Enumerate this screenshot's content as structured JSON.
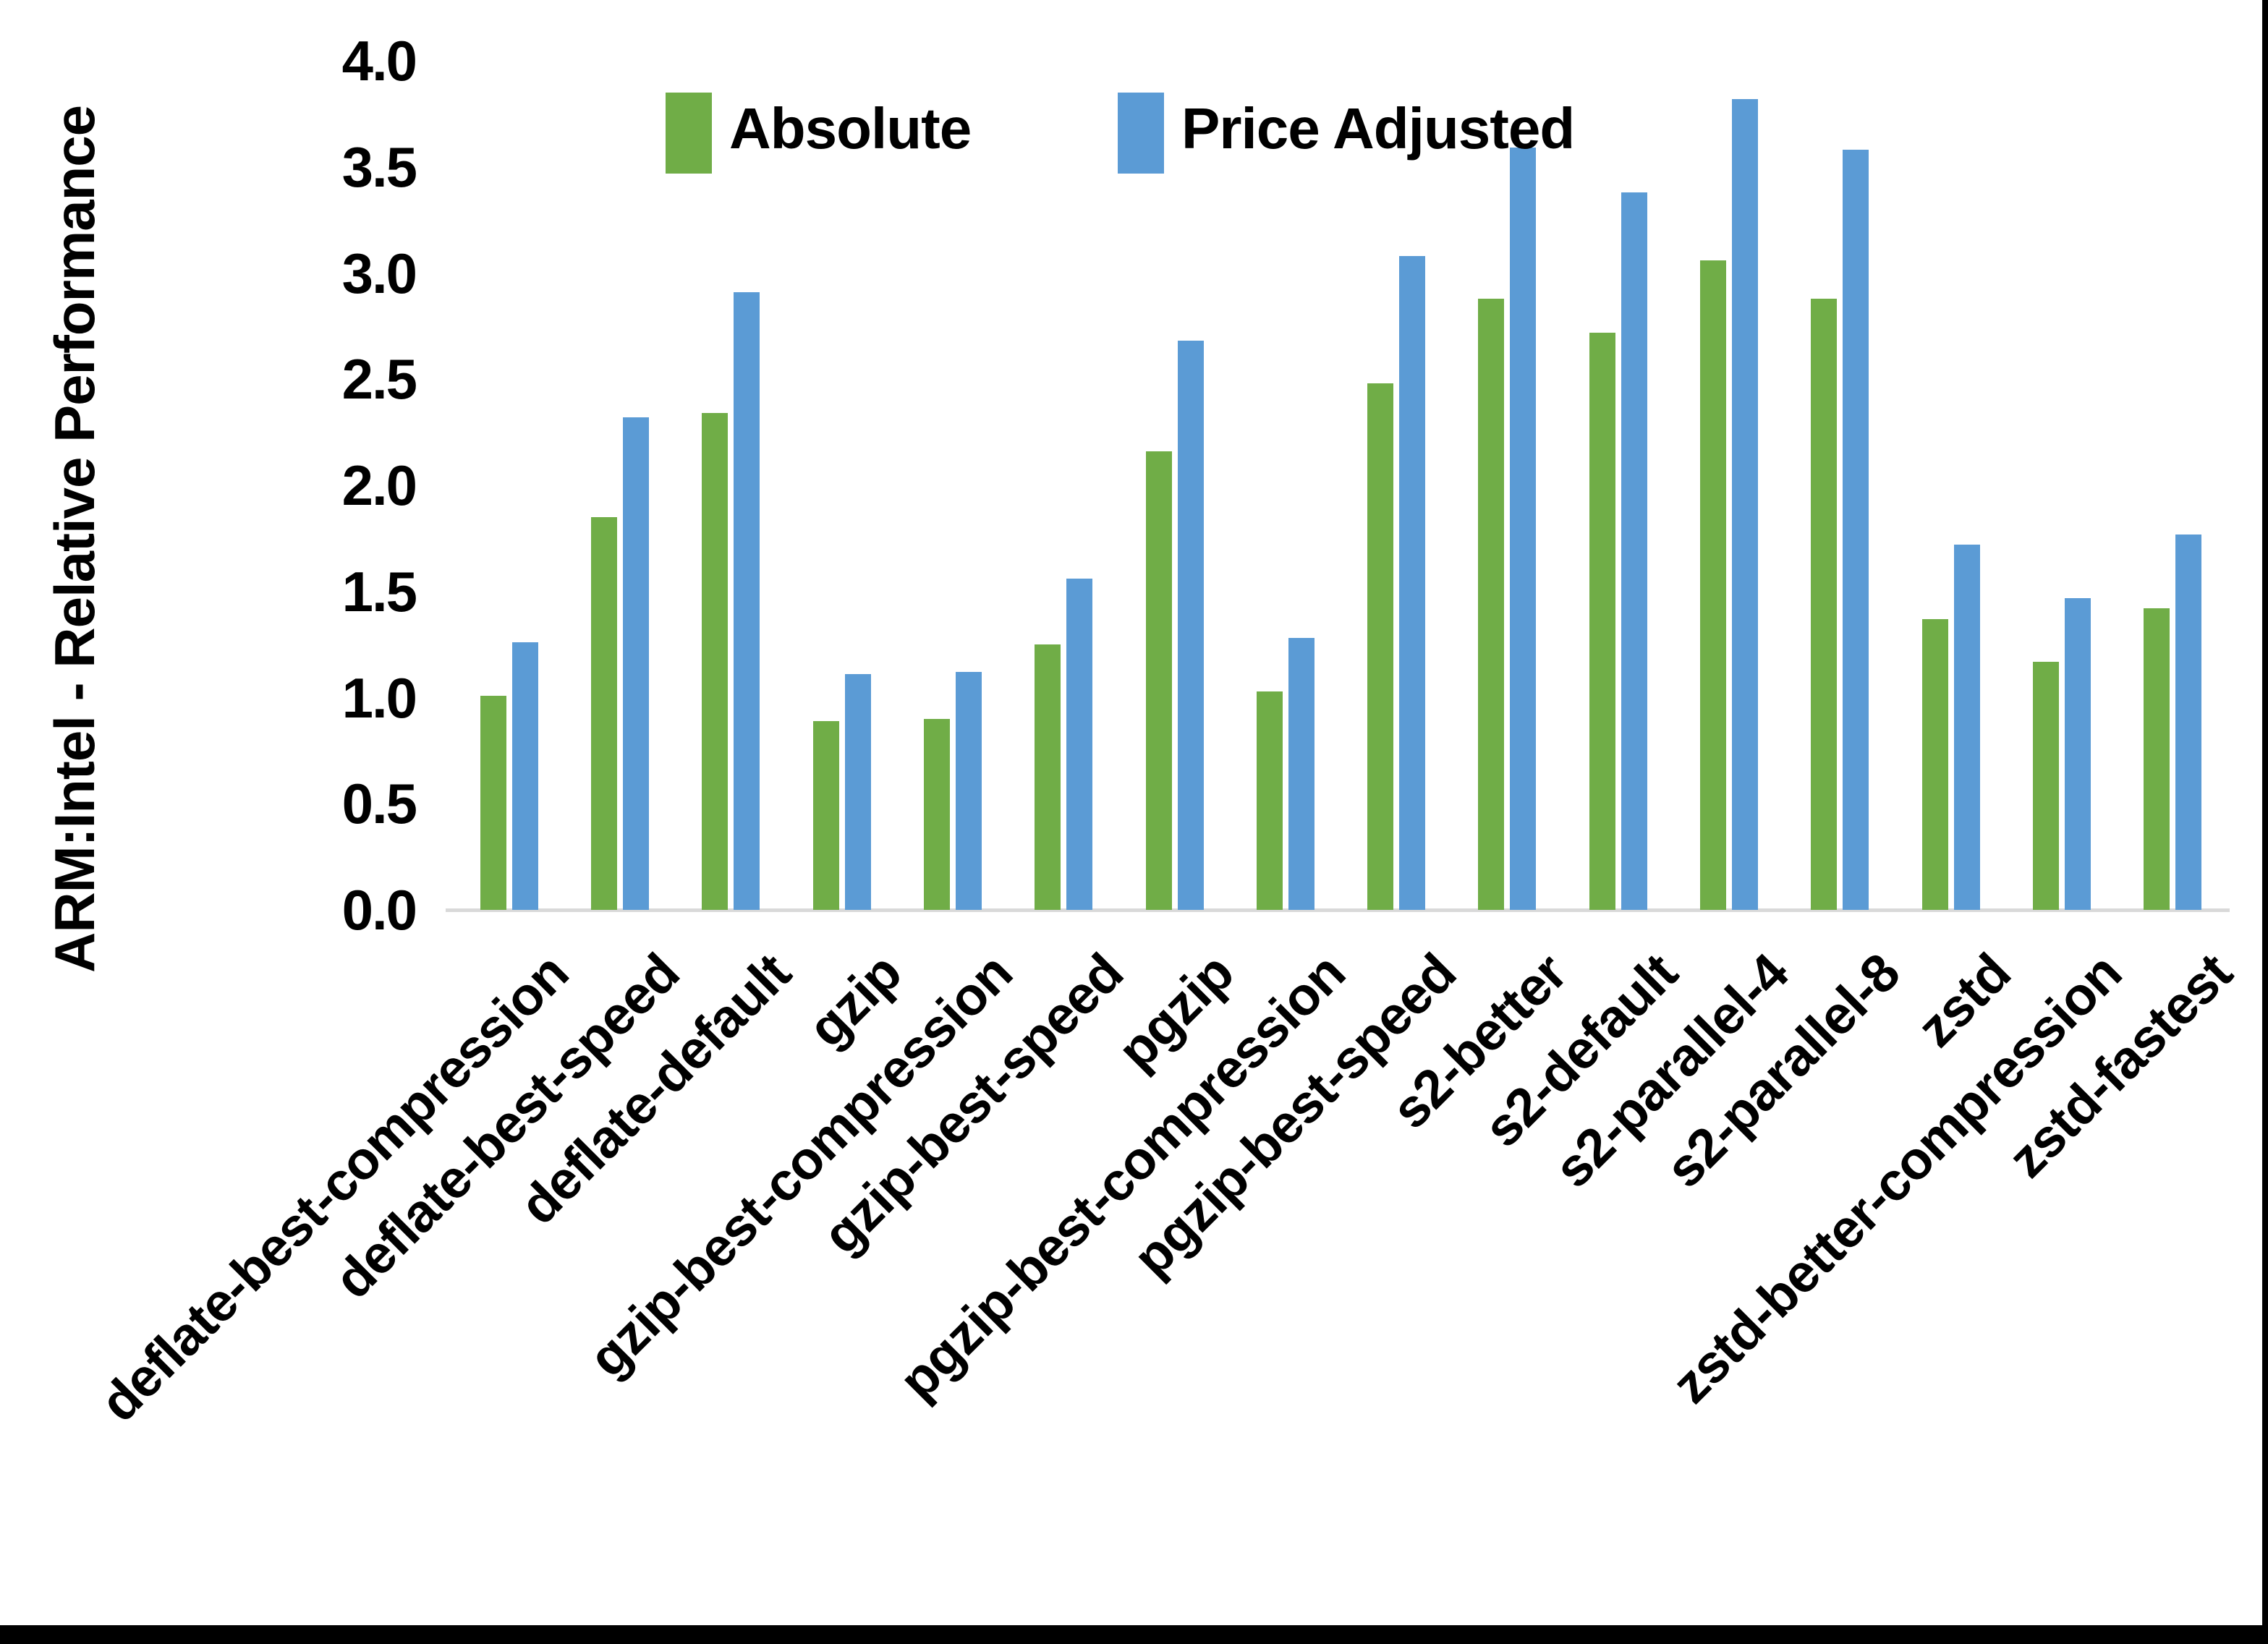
{
  "chart_data": {
    "type": "bar",
    "title": "",
    "xlabel": "",
    "ylabel": "ARM:Intel - Relative Performance",
    "ylim": [
      0.0,
      4.0
    ],
    "ytick_step": 0.5,
    "ytick_labels": [
      "0.0",
      "0.5",
      "1.0",
      "1.5",
      "2.0",
      "2.5",
      "3.0",
      "3.5",
      "4.0"
    ],
    "grid": false,
    "legend_position": "top-center",
    "categories": [
      "deflate-best-compression",
      "deflate-best-speed",
      "deflate-default",
      "gzip",
      "gzip-best-compression",
      "gzip-best-speed",
      "pgzip",
      "pgzip-best-compression",
      "pgzip-best-speed",
      "s2-better",
      "s2-default",
      "s2-parallel-4",
      "s2-parallel-8",
      "zstd",
      "zstd-better-compression",
      "zstd-fastest"
    ],
    "series": [
      {
        "name": "Absolute",
        "color": "#70AD47",
        "values": [
          1.01,
          1.85,
          2.34,
          0.89,
          0.9,
          1.25,
          2.16,
          1.03,
          2.48,
          2.88,
          2.72,
          3.06,
          2.88,
          1.37,
          1.17,
          1.42
        ]
      },
      {
        "name": "Price Adjusted",
        "color": "#5B9BD5",
        "values": [
          1.26,
          2.32,
          2.91,
          1.11,
          1.12,
          1.56,
          2.68,
          1.28,
          3.08,
          3.59,
          3.38,
          3.82,
          3.58,
          1.72,
          1.47,
          1.77
        ]
      }
    ],
    "colors": {
      "axis_line": "#d9d9d9",
      "text": "#000000",
      "background": "#ffffff",
      "window_edge": "#000000"
    }
  }
}
